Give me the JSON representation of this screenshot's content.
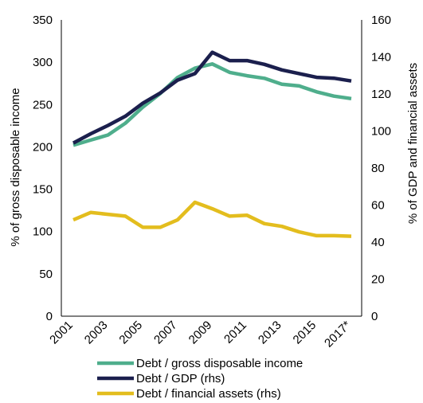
{
  "chart_data": {
    "type": "line",
    "x": [
      "2001",
      "2002",
      "2003",
      "2004",
      "2005",
      "2006",
      "2007",
      "2008",
      "2009",
      "2010",
      "2011",
      "2012",
      "2013",
      "2014",
      "2015",
      "2016",
      "2017*"
    ],
    "x_tick_labels": [
      "2001",
      "2003",
      "2005",
      "2007",
      "2009",
      "2011",
      "2013",
      "2015",
      "2017*"
    ],
    "y_left": {
      "label": "% of gross disposable income",
      "range": [
        0,
        350
      ],
      "ticks": [
        "0",
        "50",
        "100",
        "150",
        "200",
        "250",
        "300",
        "350"
      ]
    },
    "y_right": {
      "label": "% of GDP and financial assets",
      "range": [
        0,
        160
      ],
      "ticks": [
        "0",
        "20",
        "40",
        "60",
        "80",
        "100",
        "120",
        "140",
        "160"
      ]
    },
    "grid": false,
    "legend_placement": "bottom",
    "series": [
      {
        "name": "Debt / gross disposable income",
        "axis": "left",
        "color": "#4fae8c",
        "values": [
          202,
          208,
          214,
          228,
          247,
          263,
          282,
          293,
          298,
          288,
          284,
          281,
          274,
          272,
          265,
          260,
          257
        ]
      },
      {
        "name": "Debt / GDP (rhs)",
        "axis": "right",
        "color": "#1b1f4d",
        "values": [
          93.5,
          98.5,
          103,
          108,
          115,
          120.5,
          127.5,
          131,
          142.5,
          138,
          138,
          136,
          133,
          131,
          129,
          128.5,
          127
        ]
      },
      {
        "name": "Debt / financial assets (rhs)",
        "axis": "right",
        "color": "#e3bd1e",
        "values": [
          52,
          56,
          55,
          54,
          48,
          48,
          52,
          61.5,
          58,
          54,
          54.5,
          50,
          48.5,
          45.5,
          43.5,
          43.5,
          43.2
        ]
      }
    ]
  }
}
